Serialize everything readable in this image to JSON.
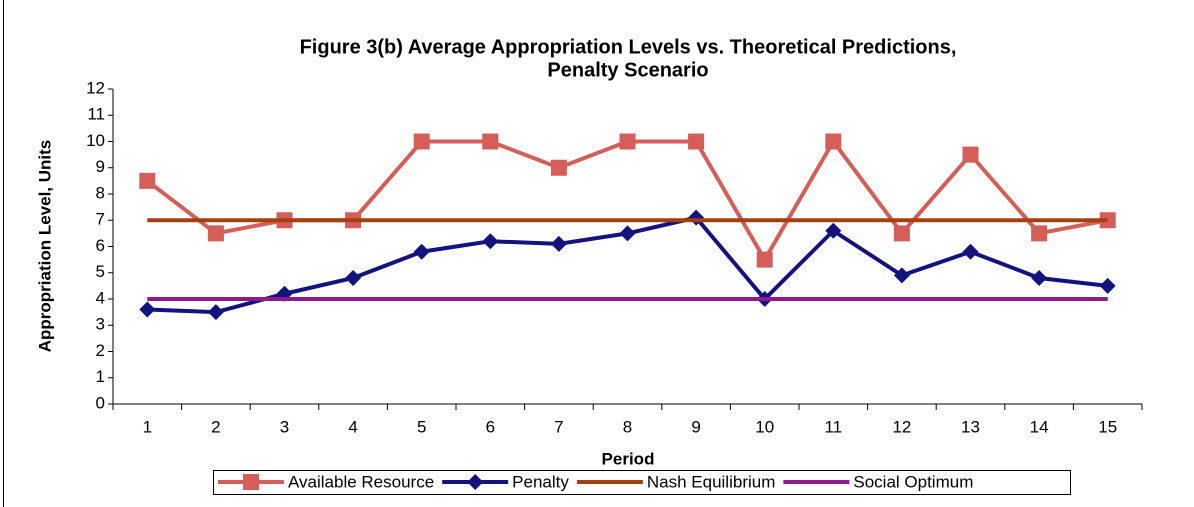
{
  "chart_data": {
    "type": "line",
    "title": [
      "Figure 3(b) Average Appropriation Levels vs. Theoretical Predictions,",
      "Penalty Scenario"
    ],
    "x_label": "Period",
    "y_label": "Appropriation Level, Units",
    "categories": [
      "1",
      "2",
      "3",
      "4",
      "5",
      "6",
      "7",
      "8",
      "9",
      "10",
      "11",
      "12",
      "13",
      "14",
      "15"
    ],
    "series": [
      {
        "name": "Available Resource",
        "color": "#d65e58",
        "marker": "square",
        "values": [
          8.5,
          6.5,
          7,
          7,
          10,
          10,
          9,
          10,
          10,
          5.5,
          10,
          6.5,
          9.5,
          6.5,
          7
        ]
      },
      {
        "name": "Penalty",
        "color": "#13137f",
        "marker": "diamond",
        "values": [
          3.6,
          3.5,
          4.2,
          4.8,
          5.8,
          6.2,
          6.1,
          6.5,
          7.1,
          4.0,
          6.6,
          4.9,
          5.8,
          4.8,
          4.5
        ]
      },
      {
        "name": "Nash Equilibrium",
        "color": "#a3400f",
        "values": [
          7,
          7,
          7,
          7,
          7,
          7,
          7,
          7,
          7,
          7,
          7,
          7,
          7,
          7,
          7
        ]
      },
      {
        "name": "Social Optimum",
        "color": "#8e1a8e",
        "values": [
          4,
          4,
          4,
          4,
          4,
          4,
          4,
          4,
          4,
          4,
          4,
          4,
          4,
          4,
          4
        ]
      }
    ],
    "ylim": [
      0,
      12
    ],
    "yticks": [
      0,
      1,
      2,
      3,
      4,
      5,
      6,
      7,
      8,
      9,
      10,
      11,
      12
    ],
    "grid": false,
    "legend": "bottom"
  }
}
